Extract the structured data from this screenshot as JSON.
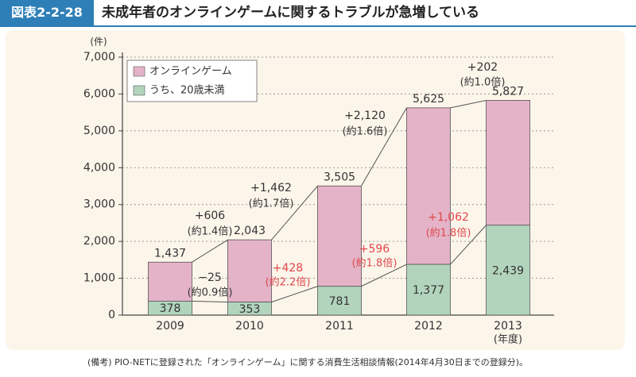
{
  "header": {
    "figure_label": "図表2-2-28",
    "title": "未成年者のオンラインゲームに関するトラブルが急増している"
  },
  "chart_data": {
    "type": "bar",
    "title": "未成年者のオンラインゲームに関するトラブルが急増している",
    "ylabel": "(件)",
    "xlabel": "(年度)",
    "ylim": [
      0,
      7000
    ],
    "yticks": [
      0,
      1000,
      2000,
      3000,
      4000,
      5000,
      6000,
      7000
    ],
    "ytick_labels": [
      "0",
      "1,000",
      "2,000",
      "3,000",
      "4,000",
      "5,000",
      "6,000",
      "7,000"
    ],
    "categories": [
      "2009",
      "2010",
      "2011",
      "2012",
      "2013"
    ],
    "grid": true,
    "legend_position": "top-left",
    "series": [
      {
        "name": "オンラインゲーム",
        "color": "#e4b3c8",
        "values": [
          1437,
          2043,
          3505,
          5625,
          5827
        ],
        "labels": [
          "1,437",
          "2,043",
          "3,505",
          "5,625",
          "5,827"
        ]
      },
      {
        "name": "うち、20歳未満",
        "color": "#b2d4bd",
        "values": [
          378,
          353,
          781,
          1377,
          2439
        ],
        "labels": [
          "378",
          "353",
          "781",
          "1,377",
          "2,439"
        ]
      }
    ],
    "total_changes": [
      {
        "change": "+606",
        "ratio": "(約1.4倍)"
      },
      {
        "change": "+1,462",
        "ratio": "(約1.7倍)"
      },
      {
        "change": "+2,120",
        "ratio": "(約1.6倍)"
      },
      {
        "change": "+202",
        "ratio": "(約1.0倍)"
      }
    ],
    "under20_changes": [
      {
        "change": "−25",
        "ratio": "(約0.9倍)",
        "highlight": false
      },
      {
        "change": "+428",
        "ratio": "(約2.2倍)",
        "highlight": true
      },
      {
        "change": "+596",
        "ratio": "(約1.8倍)",
        "highlight": true
      },
      {
        "change": "+1,062",
        "ratio": "(約1.8倍)",
        "highlight": true
      }
    ],
    "colors": {
      "highlight": "#e0474c",
      "text": "#333333",
      "line": "#555555"
    }
  },
  "footnote": "(備考) PIO-NETに登録された「オンラインゲーム」に関する消費生活相談情報(2014年4月30日までの登録分)。"
}
